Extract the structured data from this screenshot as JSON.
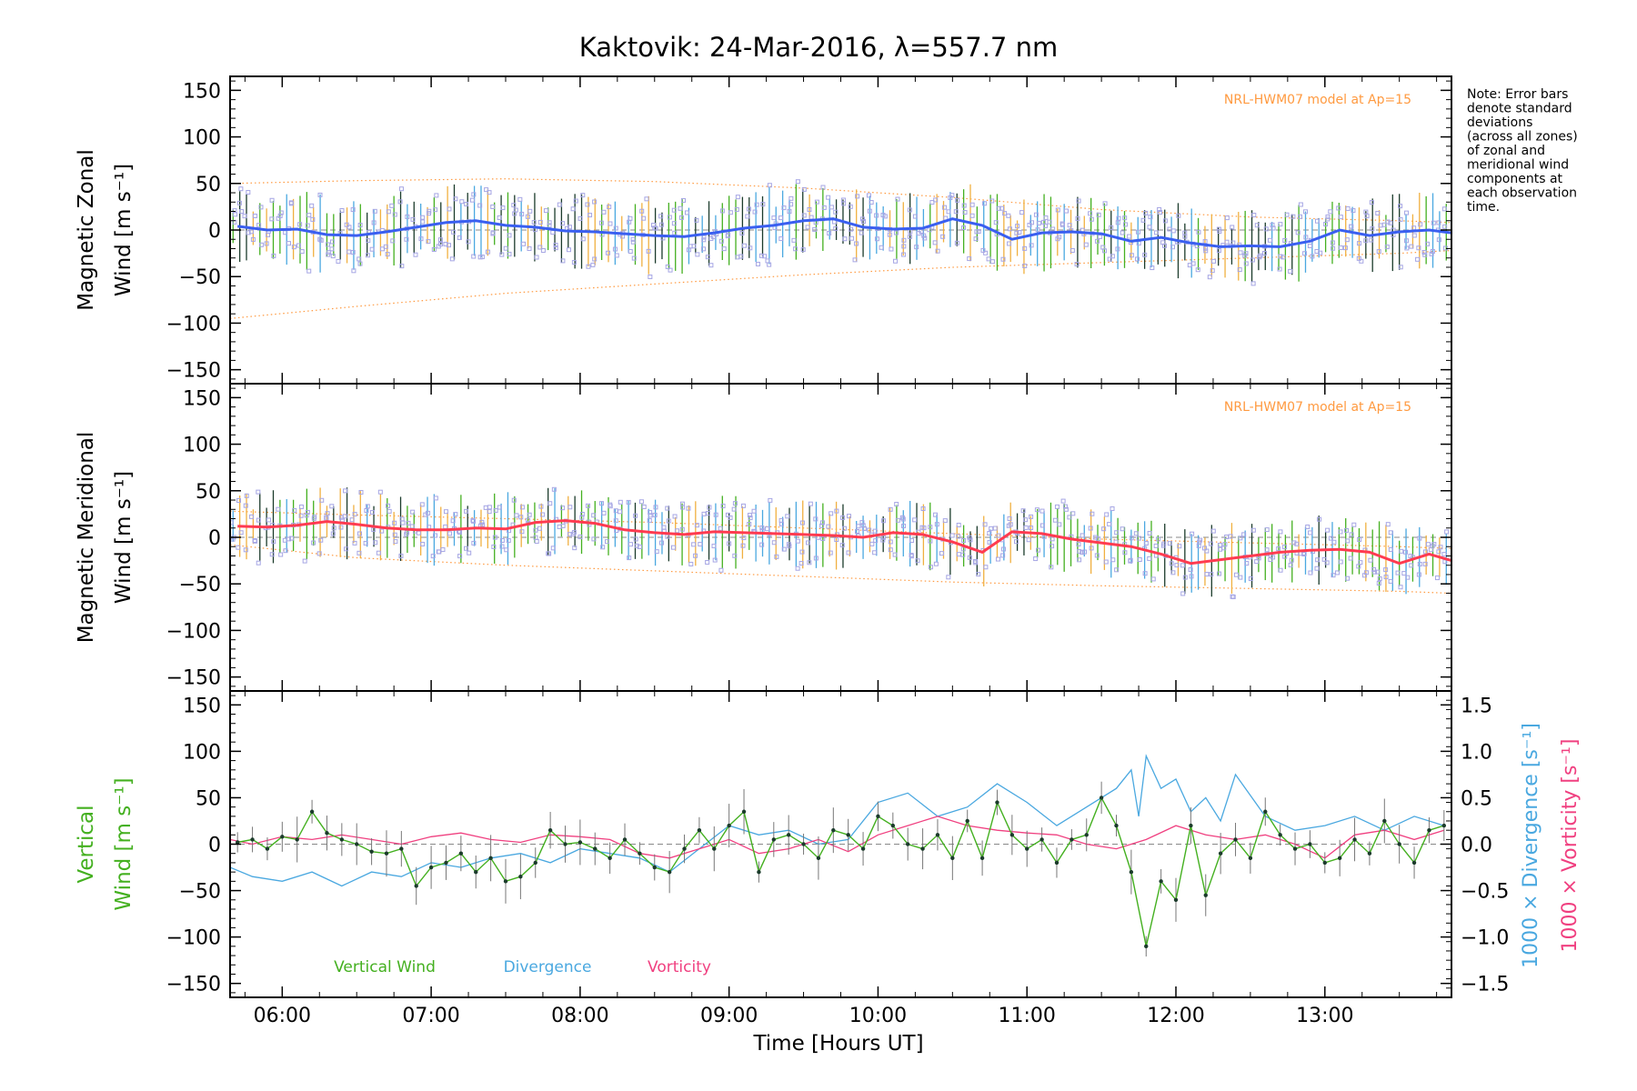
{
  "chart_data": {
    "type": "line",
    "title": "Kaktovik: 24-Mar-2016, λ=557.7 nm",
    "note": [
      "Note: Error bars",
      "denote standard",
      "deviations",
      "(across all zones)",
      "of zonal and",
      "meridional wind",
      "components at",
      "each observation",
      "time."
    ],
    "xlabel": "Time [Hours UT]",
    "xlim": [
      5.65,
      13.85
    ],
    "x_ticks": [
      "06:00",
      "07:00",
      "08:00",
      "09:00",
      "10:00",
      "11:00",
      "12:00",
      "13:00"
    ],
    "x_tick_values": [
      6,
      7,
      8,
      9,
      10,
      11,
      12,
      13
    ],
    "colors": {
      "zonal": "#3a5ff0",
      "meridional": "#ff3b50",
      "vertical": "#44b020",
      "divergence": "#4aa8e0",
      "vorticity": "#f04080",
      "model": "#ff9a40",
      "zone_points": "#a6a6e4",
      "errorbar": "#1b3b2b"
    },
    "panels": [
      {
        "id": "zonal",
        "ylabel_top": "Magnetic Zonal",
        "ylabel_bottom": "Wind",
        "ylabel_unit": "[m s⁻¹]",
        "ylim": [
          -165,
          165
        ],
        "y_ticks": [
          -150,
          -100,
          -50,
          0,
          50,
          100,
          150
        ],
        "model_label": "NRL-HWM07 model at Ap=15",
        "model_envelope": {
          "x": [
            5.65,
            6.5,
            7.5,
            8.5,
            9.5,
            10.5,
            11.5,
            12.5,
            13.5,
            13.85
          ],
          "upper": [
            50,
            53,
            55,
            52,
            45,
            35,
            22,
            14,
            10,
            8
          ],
          "lower": [
            -95,
            -82,
            -68,
            -58,
            -48,
            -40,
            -35,
            -30,
            -25,
            -22
          ]
        },
        "series": {
          "x": [
            5.7,
            5.9,
            6.1,
            6.3,
            6.5,
            6.7,
            6.9,
            7.1,
            7.3,
            7.5,
            7.7,
            7.9,
            8.1,
            8.3,
            8.5,
            8.7,
            8.9,
            9.1,
            9.3,
            9.5,
            9.7,
            9.9,
            10.1,
            10.3,
            10.5,
            10.7,
            10.9,
            11.1,
            11.3,
            11.5,
            11.7,
            11.9,
            12.1,
            12.3,
            12.5,
            12.7,
            12.9,
            13.1,
            13.3,
            13.5,
            13.7,
            13.85
          ],
          "values": [
            4,
            0,
            1,
            -5,
            -6,
            -2,
            3,
            8,
            10,
            5,
            3,
            -1,
            -2,
            -4,
            -6,
            -7,
            -3,
            2,
            5,
            10,
            12,
            3,
            1,
            2,
            12,
            5,
            -10,
            -3,
            -2,
            -4,
            -12,
            -8,
            -14,
            -18,
            -17,
            -18,
            -12,
            0,
            -6,
            -2,
            0,
            -3
          ]
        },
        "error_halfwidth": 30
      },
      {
        "id": "meridional",
        "ylabel_top": "Magnetic Meridional",
        "ylabel_bottom": "Wind",
        "ylabel_unit": "[m s⁻¹]",
        "ylim": [
          -165,
          165
        ],
        "y_ticks": [
          -150,
          -100,
          -50,
          0,
          50,
          100,
          150
        ],
        "model_label": "NRL-HWM07 model at Ap=15",
        "model_envelope": {
          "x": [
            5.65,
            6.5,
            7.5,
            8.5,
            9.5,
            10.5,
            11.5,
            12.5,
            13.5,
            13.85
          ],
          "upper": [
            28,
            24,
            20,
            16,
            10,
            4,
            -2,
            -6,
            -10,
            -12
          ],
          "lower": [
            -8,
            -22,
            -30,
            -36,
            -42,
            -48,
            -52,
            -55,
            -58,
            -60
          ]
        },
        "series": {
          "x": [
            5.7,
            5.9,
            6.1,
            6.3,
            6.5,
            6.7,
            6.9,
            7.1,
            7.3,
            7.5,
            7.7,
            7.9,
            8.1,
            8.3,
            8.5,
            8.7,
            8.9,
            9.1,
            9.3,
            9.5,
            9.7,
            9.9,
            10.1,
            10.3,
            10.5,
            10.7,
            10.9,
            11.1,
            11.3,
            11.5,
            11.7,
            11.9,
            12.1,
            12.3,
            12.5,
            12.7,
            12.9,
            13.1,
            13.3,
            13.5,
            13.7,
            13.85
          ],
          "values": [
            12,
            11,
            13,
            17,
            14,
            10,
            8,
            8,
            10,
            9,
            16,
            18,
            15,
            8,
            5,
            3,
            6,
            5,
            4,
            3,
            2,
            0,
            5,
            3,
            -5,
            -16,
            6,
            4,
            -2,
            -6,
            -10,
            -18,
            -28,
            -24,
            -20,
            -16,
            -14,
            -13,
            -16,
            -28,
            -18,
            -25
          ]
        },
        "error_halfwidth": 28
      },
      {
        "id": "vertical",
        "ylabel_top": "Vertical",
        "ylabel_bottom": "Wind",
        "ylabel_unit": "[m s⁻¹]",
        "ylim": [
          -165,
          165
        ],
        "y_ticks": [
          -150,
          -100,
          -50,
          0,
          50,
          100,
          150
        ],
        "right_axis": {
          "label_div": "1000 × Divergence [s⁻¹]",
          "label_vort": "1000 × Vorticity [s⁻¹]",
          "ylim": [
            -1.65,
            1.65
          ],
          "ticks": [
            "-1.5",
            "-1.0",
            "-0.5",
            "0.0",
            "0.5",
            "1.0",
            "1.5"
          ],
          "tick_values": [
            -1.5,
            -1.0,
            -0.5,
            0.0,
            0.5,
            1.0,
            1.5
          ]
        },
        "legend": [
          "Vertical Wind",
          "Divergence",
          "Vorticity"
        ],
        "vertical_wind": {
          "x": [
            5.7,
            5.8,
            5.9,
            6.0,
            6.1,
            6.2,
            6.3,
            6.4,
            6.5,
            6.6,
            6.7,
            6.8,
            6.9,
            7.0,
            7.1,
            7.2,
            7.3,
            7.4,
            7.5,
            7.6,
            7.7,
            7.8,
            7.9,
            8.0,
            8.1,
            8.2,
            8.3,
            8.4,
            8.5,
            8.6,
            8.7,
            8.8,
            8.9,
            9.0,
            9.1,
            9.2,
            9.3,
            9.4,
            9.5,
            9.6,
            9.7,
            9.8,
            9.9,
            10.0,
            10.1,
            10.2,
            10.3,
            10.4,
            10.5,
            10.6,
            10.7,
            10.8,
            10.9,
            11.0,
            11.1,
            11.2,
            11.3,
            11.4,
            11.5,
            11.6,
            11.7,
            11.8,
            11.9,
            12.0,
            12.1,
            12.2,
            12.3,
            12.4,
            12.5,
            12.6,
            12.7,
            12.8,
            12.9,
            13.0,
            13.1,
            13.2,
            13.3,
            13.4,
            13.5,
            13.6,
            13.7,
            13.8
          ],
          "values": [
            2,
            5,
            -5,
            8,
            5,
            35,
            12,
            5,
            0,
            -8,
            -10,
            -5,
            -45,
            -25,
            -20,
            -10,
            -30,
            -15,
            -40,
            -35,
            -20,
            15,
            0,
            2,
            -5,
            -15,
            5,
            -10,
            -25,
            -30,
            -5,
            15,
            -5,
            20,
            35,
            -30,
            5,
            10,
            0,
            -15,
            15,
            10,
            -5,
            30,
            20,
            0,
            -5,
            10,
            -15,
            25,
            -15,
            45,
            10,
            -5,
            5,
            -20,
            5,
            10,
            50,
            20,
            -30,
            -110,
            -40,
            -60,
            20,
            -55,
            -10,
            5,
            -15,
            35,
            10,
            -5,
            0,
            -20,
            -15,
            5,
            -10,
            25,
            0,
            -20,
            15,
            20
          ]
        },
        "divergence": {
          "x": [
            5.65,
            5.8,
            6.0,
            6.2,
            6.4,
            6.6,
            6.8,
            7.0,
            7.2,
            7.4,
            7.6,
            7.8,
            8.0,
            8.2,
            8.4,
            8.6,
            8.8,
            9.0,
            9.2,
            9.4,
            9.6,
            9.8,
            10.0,
            10.2,
            10.4,
            10.6,
            10.8,
            11.0,
            11.2,
            11.4,
            11.6,
            11.7,
            11.75,
            11.8,
            11.9,
            12.0,
            12.1,
            12.2,
            12.3,
            12.4,
            12.6,
            12.8,
            13.0,
            13.2,
            13.4,
            13.6,
            13.8
          ],
          "values": [
            -0.25,
            -0.35,
            -0.4,
            -0.3,
            -0.45,
            -0.3,
            -0.35,
            -0.2,
            -0.25,
            -0.15,
            -0.1,
            -0.2,
            -0.05,
            -0.1,
            -0.15,
            -0.3,
            -0.05,
            0.2,
            0.1,
            0.15,
            0.0,
            0.05,
            0.45,
            0.55,
            0.3,
            0.4,
            0.65,
            0.45,
            0.2,
            0.4,
            0.6,
            0.8,
            0.3,
            0.95,
            0.6,
            0.7,
            0.35,
            0.5,
            0.25,
            0.75,
            0.3,
            0.15,
            0.2,
            0.3,
            0.15,
            0.3,
            0.2
          ]
        },
        "vorticity": {
          "x": [
            5.65,
            5.8,
            6.0,
            6.2,
            6.4,
            6.6,
            6.8,
            7.0,
            7.2,
            7.4,
            7.6,
            7.8,
            8.0,
            8.2,
            8.4,
            8.6,
            8.8,
            9.0,
            9.2,
            9.4,
            9.6,
            9.8,
            10.0,
            10.2,
            10.4,
            10.6,
            10.8,
            11.0,
            11.2,
            11.4,
            11.6,
            11.8,
            12.0,
            12.2,
            12.4,
            12.6,
            12.8,
            13.0,
            13.2,
            13.4,
            13.6,
            13.8
          ],
          "values": [
            0.05,
            0.0,
            0.08,
            0.05,
            0.1,
            0.05,
            0.0,
            0.08,
            0.12,
            0.05,
            0.02,
            0.1,
            0.08,
            0.05,
            -0.1,
            -0.15,
            -0.05,
            0.05,
            -0.1,
            -0.05,
            0.05,
            -0.08,
            0.1,
            0.2,
            0.3,
            0.2,
            0.15,
            0.12,
            0.1,
            0.0,
            -0.05,
            0.05,
            0.2,
            0.1,
            0.05,
            0.1,
            0.0,
            -0.15,
            0.1,
            0.15,
            0.05,
            0.15
          ]
        },
        "error_halfwidth": 18
      }
    ]
  }
}
